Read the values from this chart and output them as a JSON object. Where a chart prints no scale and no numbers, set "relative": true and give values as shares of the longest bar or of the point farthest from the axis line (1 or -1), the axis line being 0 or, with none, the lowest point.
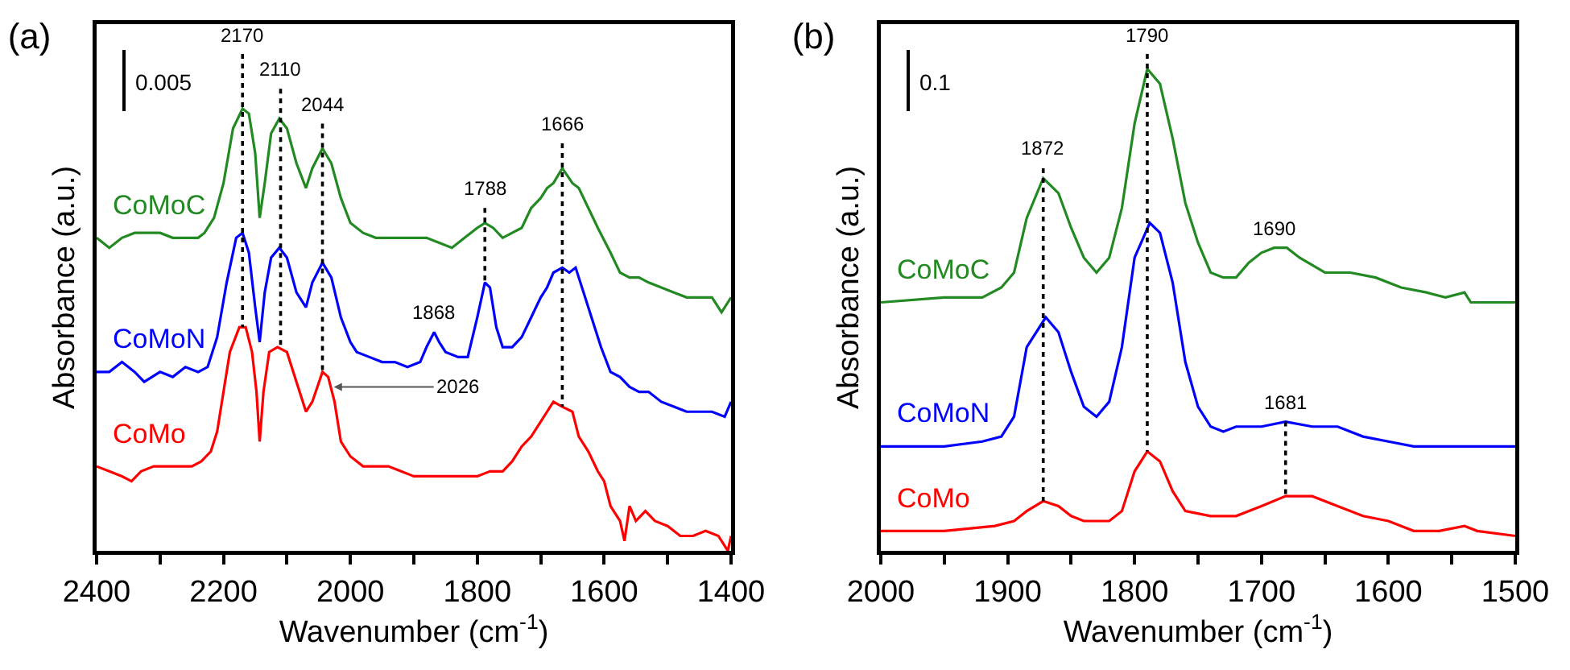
{
  "chart_data": [
    {
      "type": "line",
      "title": "(a)",
      "xlabel": "Wavenumber (cm$^{-1}$)",
      "ylabel": "Absorbance (a.u.)",
      "relative": true,
      "xlim": [
        2400,
        1400
      ],
      "xticks": [
        2400,
        {
          "value": 2300,
          "label": null
        },
        2200,
        {
          "value": 2100,
          "label": null
        },
        2000,
        {
          "value": 1900,
          "label": null
        },
        1800,
        {
          "value": 1700,
          "label": null
        },
        1600,
        {
          "value": 1500,
          "label": null
        },
        1400
      ],
      "series": [
        {
          "name": "CoMoC",
          "color": "#238a23",
          "x": [
            2400,
            2380,
            2360,
            2340,
            2320,
            2300,
            2280,
            2260,
            2240,
            2230,
            2215,
            2200,
            2185,
            2170,
            2160,
            2150,
            2143,
            2135,
            2125,
            2112,
            2100,
            2085,
            2070,
            2060,
            2044,
            2030,
            2015,
            2000,
            1980,
            1960,
            1940,
            1920,
            1900,
            1880,
            1860,
            1840,
            1820,
            1800,
            1788,
            1775,
            1760,
            1745,
            1730,
            1715,
            1700,
            1690,
            1680,
            1666,
            1650,
            1640,
            1625,
            1610,
            1590,
            1575,
            1560,
            1545,
            1530,
            1510,
            1490,
            1470,
            1450,
            1430,
            1415,
            1400
          ],
          "values": [
            0.63,
            0.61,
            0.63,
            0.64,
            0.64,
            0.64,
            0.63,
            0.63,
            0.63,
            0.64,
            0.67,
            0.74,
            0.85,
            0.89,
            0.88,
            0.8,
            0.67,
            0.74,
            0.84,
            0.87,
            0.85,
            0.78,
            0.73,
            0.77,
            0.81,
            0.78,
            0.71,
            0.66,
            0.64,
            0.63,
            0.63,
            0.63,
            0.63,
            0.63,
            0.62,
            0.61,
            0.63,
            0.65,
            0.66,
            0.65,
            0.63,
            0.64,
            0.65,
            0.69,
            0.71,
            0.73,
            0.74,
            0.77,
            0.74,
            0.73,
            0.69,
            0.65,
            0.6,
            0.56,
            0.55,
            0.55,
            0.54,
            0.53,
            0.52,
            0.51,
            0.51,
            0.51,
            0.48,
            0.51
          ]
        },
        {
          "name": "CoMoN",
          "color": "#0000ff",
          "x": [
            2400,
            2380,
            2360,
            2340,
            2325,
            2300,
            2280,
            2260,
            2240,
            2225,
            2210,
            2195,
            2180,
            2170,
            2160,
            2150,
            2143,
            2135,
            2125,
            2112,
            2100,
            2085,
            2070,
            2060,
            2044,
            2030,
            2015,
            2000,
            1990,
            1970,
            1950,
            1930,
            1910,
            1890,
            1880,
            1868,
            1860,
            1850,
            1830,
            1815,
            1800,
            1788,
            1780,
            1770,
            1760,
            1745,
            1730,
            1715,
            1700,
            1690,
            1680,
            1666,
            1655,
            1645,
            1630,
            1620,
            1605,
            1590,
            1575,
            1560,
            1545,
            1530,
            1510,
            1490,
            1470,
            1450,
            1430,
            1410,
            1400
          ],
          "values": [
            0.36,
            0.36,
            0.38,
            0.36,
            0.34,
            0.36,
            0.35,
            0.37,
            0.36,
            0.37,
            0.43,
            0.54,
            0.63,
            0.64,
            0.6,
            0.49,
            0.42,
            0.52,
            0.59,
            0.61,
            0.59,
            0.52,
            0.49,
            0.54,
            0.58,
            0.55,
            0.47,
            0.42,
            0.4,
            0.39,
            0.38,
            0.38,
            0.37,
            0.38,
            0.41,
            0.44,
            0.42,
            0.4,
            0.39,
            0.39,
            0.47,
            0.54,
            0.53,
            0.45,
            0.41,
            0.41,
            0.43,
            0.47,
            0.51,
            0.53,
            0.56,
            0.57,
            0.56,
            0.57,
            0.51,
            0.47,
            0.41,
            0.36,
            0.35,
            0.33,
            0.32,
            0.32,
            0.3,
            0.29,
            0.28,
            0.28,
            0.28,
            0.27,
            0.3
          ]
        },
        {
          "name": "CoMo",
          "color": "#ff0000",
          "x": [
            2400,
            2380,
            2360,
            2345,
            2330,
            2310,
            2290,
            2270,
            2250,
            2235,
            2220,
            2210,
            2200,
            2190,
            2175,
            2165,
            2155,
            2148,
            2143,
            2137,
            2128,
            2115,
            2100,
            2085,
            2070,
            2060,
            2044,
            2035,
            2025,
            2015,
            2000,
            1980,
            1960,
            1940,
            1920,
            1900,
            1880,
            1860,
            1840,
            1820,
            1800,
            1780,
            1760,
            1745,
            1730,
            1715,
            1700,
            1690,
            1680,
            1666,
            1650,
            1640,
            1625,
            1610,
            1600,
            1590,
            1575,
            1568,
            1560,
            1550,
            1535,
            1520,
            1500,
            1480,
            1460,
            1440,
            1420,
            1410,
            1405,
            1400
          ],
          "values": [
            0.17,
            0.16,
            0.15,
            0.14,
            0.16,
            0.17,
            0.17,
            0.17,
            0.17,
            0.18,
            0.2,
            0.24,
            0.32,
            0.4,
            0.45,
            0.45,
            0.4,
            0.32,
            0.22,
            0.32,
            0.4,
            0.41,
            0.4,
            0.34,
            0.28,
            0.3,
            0.36,
            0.35,
            0.3,
            0.22,
            0.19,
            0.17,
            0.17,
            0.17,
            0.16,
            0.15,
            0.15,
            0.15,
            0.15,
            0.15,
            0.15,
            0.16,
            0.16,
            0.18,
            0.21,
            0.23,
            0.26,
            0.28,
            0.3,
            0.29,
            0.28,
            0.23,
            0.2,
            0.16,
            0.14,
            0.09,
            0.06,
            0.02,
            0.09,
            0.06,
            0.08,
            0.06,
            0.05,
            0.03,
            0.03,
            0.04,
            0.03,
            0.01,
            0,
            0.03
          ]
        },
        {
          "type": "line",
          "line_style": "dotted",
          "color": "#000000",
          "x": [
            2170,
            2170
          ],
          "values": [
            1.0,
            0.45
          ]
        },
        {
          "type": "line",
          "line_style": "dotted",
          "color": "#000000",
          "x": [
            2110,
            2110
          ],
          "values": [
            0.93,
            0.41
          ]
        },
        {
          "type": "line",
          "line_style": "dotted",
          "color": "#000000",
          "x": [
            2044,
            2044
          ],
          "values": [
            0.86,
            0.36
          ]
        },
        {
          "type": "line",
          "line_style": "dotted",
          "color": "#000000",
          "x": [
            1788,
            1788
          ],
          "values": [
            0.69,
            0.54
          ]
        },
        {
          "type": "line",
          "line_style": "dotted",
          "color": "#000000",
          "x": [
            1666,
            1666
          ],
          "values": [
            0.82,
            0.29
          ]
        }
      ],
      "annotations": [
        "0.005",
        {
          "text": "2170",
          "x": 2170,
          "y": 1.0
        },
        {
          "text": "2110",
          "x": 2110,
          "y": 0.93
        },
        {
          "text": "2044",
          "x": 2044,
          "y": 0.86
        },
        {
          "text": "1868",
          "x": 1868,
          "y": 0.44
        },
        {
          "text": "1788",
          "x": 1788,
          "y": 0.69
        },
        {
          "text": "1666",
          "x": 1666,
          "y": 0.82
        },
        {
          "text": "2026",
          "x": 2026,
          "y": 0.33
        }
      ]
    },
    {
      "type": "line",
      "title": "(b)",
      "xlabel": "Wavenumber (cm$^{-1}$)",
      "ylabel": "Absorbance (a.u.)",
      "relative": true,
      "xlim": [
        2000,
        1500
      ],
      "xticks": [
        2000,
        {
          "value": 1950,
          "label": null
        },
        1900,
        {
          "value": 1850,
          "label": null
        },
        1800,
        {
          "value": 1750,
          "label": null
        },
        1700,
        {
          "value": 1650,
          "label": null
        },
        1600,
        {
          "value": 1550,
          "label": null
        },
        1500
      ],
      "series": [
        {
          "name": "CoMoC",
          "color": "#238a23",
          "x": [
            2000,
            1950,
            1920,
            1905,
            1895,
            1885,
            1872,
            1860,
            1850,
            1840,
            1830,
            1820,
            1810,
            1800,
            1790,
            1780,
            1770,
            1760,
            1750,
            1740,
            1730,
            1720,
            1710,
            1700,
            1690,
            1680,
            1670,
            1650,
            1630,
            1610,
            1590,
            1570,
            1555,
            1540,
            1535,
            1520,
            1500
          ],
          "values": [
            0.5,
            0.51,
            0.51,
            0.53,
            0.56,
            0.67,
            0.75,
            0.72,
            0.65,
            0.59,
            0.56,
            0.59,
            0.69,
            0.86,
            0.97,
            0.94,
            0.83,
            0.7,
            0.62,
            0.56,
            0.55,
            0.55,
            0.58,
            0.6,
            0.61,
            0.61,
            0.59,
            0.56,
            0.56,
            0.55,
            0.53,
            0.52,
            0.51,
            0.52,
            0.5,
            0.5,
            0.5
          ]
        },
        {
          "name": "CoMoN",
          "color": "#0000ff",
          "x": [
            2000,
            1950,
            1920,
            1905,
            1895,
            1885,
            1870,
            1860,
            1850,
            1840,
            1830,
            1820,
            1810,
            1800,
            1788,
            1780,
            1770,
            1760,
            1750,
            1740,
            1730,
            1720,
            1700,
            1681,
            1660,
            1640,
            1620,
            1600,
            1580,
            1560,
            1540,
            1520,
            1500
          ],
          "values": [
            0.21,
            0.21,
            0.22,
            0.23,
            0.27,
            0.41,
            0.47,
            0.44,
            0.36,
            0.29,
            0.27,
            0.3,
            0.41,
            0.59,
            0.66,
            0.64,
            0.54,
            0.38,
            0.29,
            0.25,
            0.24,
            0.25,
            0.25,
            0.26,
            0.25,
            0.25,
            0.23,
            0.22,
            0.21,
            0.21,
            0.21,
            0.21,
            0.21
          ]
        },
        {
          "name": "CoMo",
          "color": "#ff0000",
          "x": [
            2000,
            1950,
            1910,
            1895,
            1885,
            1872,
            1860,
            1850,
            1840,
            1820,
            1810,
            1800,
            1790,
            1780,
            1770,
            1760,
            1740,
            1720,
            1700,
            1681,
            1660,
            1640,
            1620,
            1600,
            1580,
            1560,
            1540,
            1530,
            1500
          ],
          "values": [
            0.04,
            0.04,
            0.05,
            0.06,
            0.08,
            0.1,
            0.09,
            0.07,
            0.06,
            0.06,
            0.08,
            0.16,
            0.2,
            0.18,
            0.12,
            0.08,
            0.07,
            0.07,
            0.09,
            0.11,
            0.11,
            0.09,
            0.07,
            0.06,
            0.04,
            0.04,
            0.05,
            0.04,
            0.03
          ]
        },
        {
          "type": "line",
          "line_style": "dotted",
          "color": "#000000",
          "x": [
            1872,
            1872
          ],
          "values": [
            0.77,
            0.1
          ]
        },
        {
          "type": "line",
          "line_style": "dotted",
          "color": "#000000",
          "x": [
            1790,
            1790
          ],
          "values": [
            1.0,
            0.2
          ]
        },
        {
          "type": "line",
          "line_style": "dotted",
          "color": "#000000",
          "x": [
            1681,
            1681
          ],
          "values": [
            0.26,
            0.11
          ]
        }
      ],
      "annotations": [
        "0.1",
        {
          "text": "1872",
          "x": 1872,
          "y": 0.77
        },
        {
          "text": "1790",
          "x": 1790,
          "y": 1.0
        },
        {
          "text": "1690",
          "x": 1690,
          "y": 0.61
        },
        {
          "text": "1681",
          "x": 1681,
          "y": 0.26
        }
      ]
    }
  ]
}
